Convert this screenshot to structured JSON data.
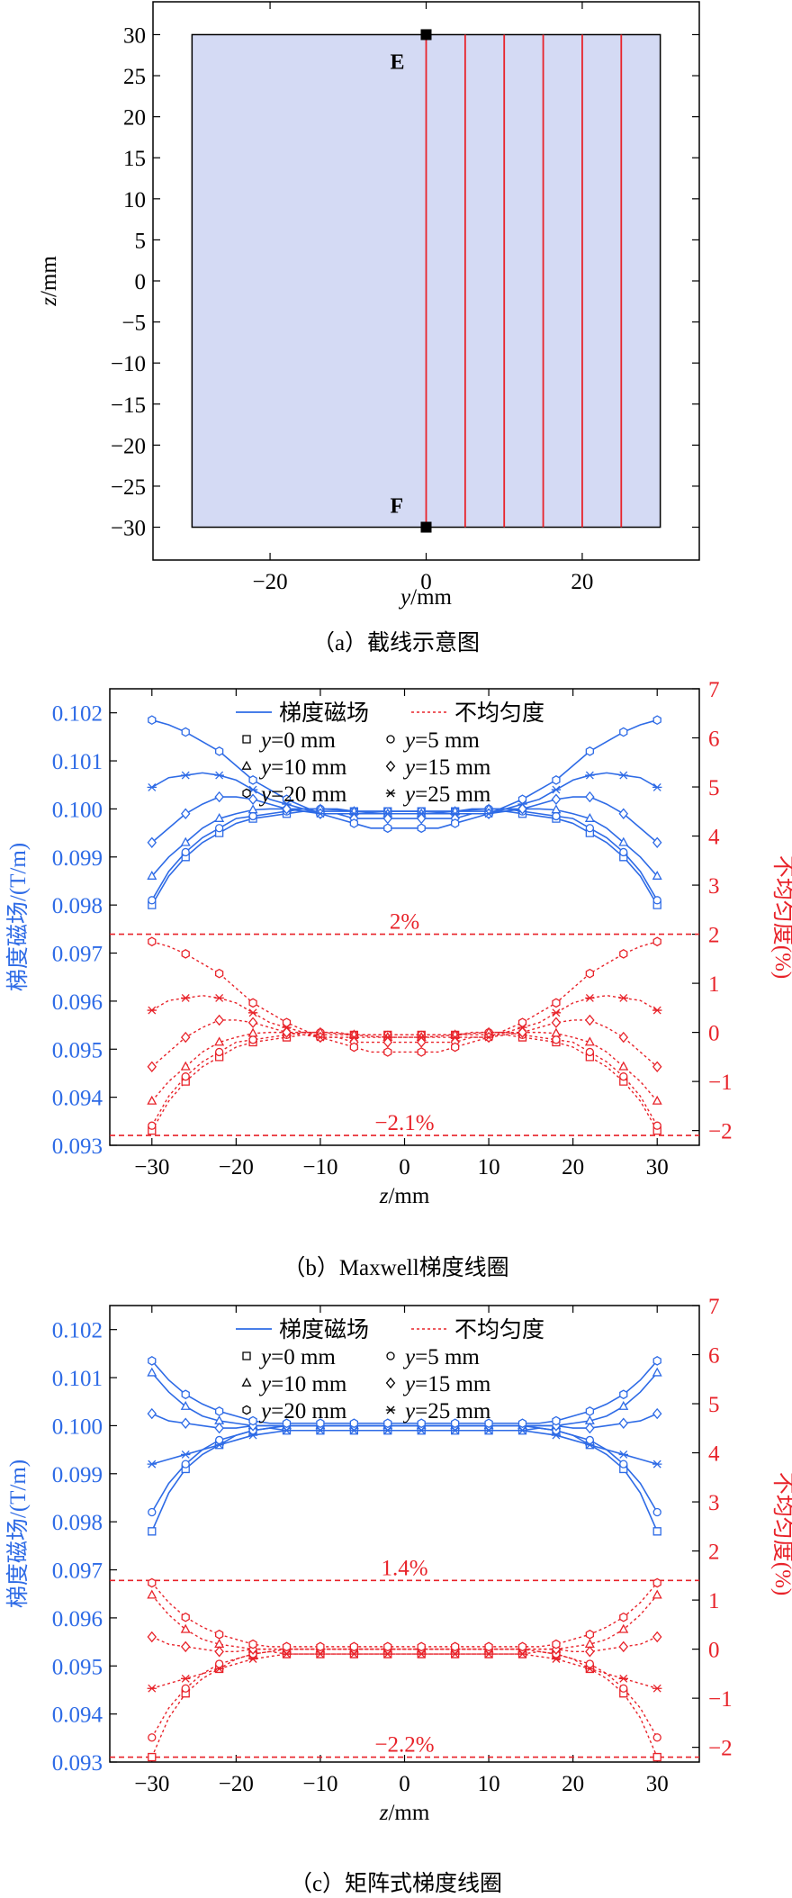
{
  "panels": {
    "a": {
      "caption": "（a）截线示意图"
    },
    "b": {
      "caption": "（b）Maxwell梯度线圈"
    },
    "c": {
      "caption": "（c）矩阵式梯度线圈"
    }
  },
  "colors": {
    "field": "#2e6be6",
    "nonuniform": "#e8232a",
    "region_fill": "#d4daf4",
    "section_line": "#e8232a"
  },
  "chart_data": [
    {
      "type": "line",
      "panel": "a",
      "xlabel_var": "y",
      "xlabel_unit": "/mm",
      "ylabel_var": "z",
      "ylabel_unit": "/mm",
      "xlim": [
        -35,
        35
      ],
      "ylim": [
        -34,
        34
      ],
      "xticks": [
        -20,
        0,
        20
      ],
      "yticks": [
        30,
        25,
        20,
        15,
        10,
        5,
        0,
        -5,
        -10,
        -15,
        -20,
        -25,
        -30
      ],
      "region": {
        "y": [
          -30,
          30
        ],
        "z": [
          -30,
          30
        ]
      },
      "section_lines_y": [
        0,
        5,
        10,
        15,
        20,
        25
      ],
      "points": [
        {
          "label": "E",
          "y": 0,
          "z": 30
        },
        {
          "label": "F",
          "y": 0,
          "z": -30
        }
      ]
    },
    {
      "type": "line",
      "panel": "b",
      "xlabel_var": "z",
      "xlabel_unit": "/mm",
      "ylabel_left": "梯度磁场/(T/m)",
      "ylabel_right": "不均匀度(%)",
      "xlim": [
        -35,
        35
      ],
      "ylim_left": [
        0.093,
        0.1025
      ],
      "ylim_right": [
        -2.3,
        7.0
      ],
      "xticks": [
        -30,
        -20,
        -10,
        0,
        10,
        20,
        30
      ],
      "yticks_left": [
        "0.093",
        "0.094",
        "0.095",
        "0.096",
        "0.097",
        "0.098",
        "0.099",
        "0.100",
        "0.101",
        "0.102"
      ],
      "yticks_right": [
        -2,
        -1,
        0,
        1,
        2,
        3,
        4,
        5,
        6,
        7
      ],
      "legend": {
        "field": "梯度磁场",
        "nonuniform": "不均匀度"
      },
      "ref_lines": [
        {
          "value": 2.0,
          "label": "2%"
        },
        {
          "value": -2.1,
          "label": "−2.1%"
        }
      ],
      "x": [
        -30,
        -28,
        -26,
        -24,
        -22,
        -20,
        -18,
        -16,
        -14,
        -12,
        -10,
        -8,
        -6,
        -4,
        -2,
        0,
        2,
        4,
        6,
        8,
        10,
        12,
        14,
        16,
        18,
        20,
        22,
        24,
        26,
        28,
        30
      ],
      "series": [
        {
          "name": "y=0 mm",
          "marker": "square",
          "field": [
            0.098,
            0.0986,
            0.099,
            0.0993,
            0.0995,
            0.0997,
            0.0998,
            0.09985,
            0.0999,
            0.09995,
            0.09995,
            0.09995,
            0.09995,
            0.09995,
            0.09995,
            0.09995,
            0.09995,
            0.09995,
            0.09995,
            0.09995,
            0.09995,
            0.09995,
            0.0999,
            0.09985,
            0.0998,
            0.0997,
            0.0995,
            0.0993,
            0.099,
            0.0986,
            0.098
          ],
          "nonuniform": [
            -2.0,
            -1.4,
            -1.0,
            -0.7,
            -0.5,
            -0.3,
            -0.2,
            -0.15,
            -0.1,
            -0.05,
            -0.05,
            -0.05,
            -0.05,
            -0.05,
            -0.05,
            -0.05,
            -0.05,
            -0.05,
            -0.05,
            -0.05,
            -0.05,
            -0.05,
            -0.1,
            -0.15,
            -0.2,
            -0.3,
            -0.5,
            -0.7,
            -1.0,
            -1.4,
            -2.0
          ]
        },
        {
          "name": "y=5 mm",
          "marker": "circle",
          "field": [
            0.0981,
            0.0987,
            0.0991,
            0.0994,
            0.0996,
            0.0998,
            0.09985,
            0.0999,
            0.09995,
            0.1,
            0.1,
            0.1,
            0.09995,
            0.09995,
            0.09995,
            0.09995,
            0.09995,
            0.09995,
            0.09995,
            0.1,
            0.1,
            0.1,
            0.09995,
            0.0999,
            0.09985,
            0.0998,
            0.0996,
            0.0994,
            0.0991,
            0.0987,
            0.0981
          ],
          "nonuniform": [
            -1.9,
            -1.3,
            -0.9,
            -0.6,
            -0.4,
            -0.2,
            -0.15,
            -0.1,
            -0.05,
            0.0,
            0.0,
            0.0,
            -0.05,
            -0.05,
            -0.05,
            -0.05,
            -0.05,
            -0.05,
            -0.05,
            0.0,
            0.0,
            0.0,
            -0.05,
            -0.1,
            -0.15,
            -0.2,
            -0.4,
            -0.6,
            -0.9,
            -1.3,
            -1.9
          ]
        },
        {
          "name": "y=10 mm",
          "marker": "triangle",
          "field": [
            0.0986,
            0.099,
            0.0993,
            0.0996,
            0.0998,
            0.0999,
            0.09998,
            0.1,
            0.1,
            0.1,
            0.1,
            0.09998,
            0.09995,
            0.09992,
            0.0999,
            0.0999,
            0.0999,
            0.09992,
            0.09995,
            0.09998,
            0.1,
            0.1,
            0.1,
            0.1,
            0.09998,
            0.0999,
            0.0998,
            0.0996,
            0.0993,
            0.099,
            0.0986
          ],
          "nonuniform": [
            -1.4,
            -1.0,
            -0.7,
            -0.4,
            -0.2,
            -0.1,
            -0.02,
            0.0,
            0.0,
            0.0,
            0.0,
            -0.02,
            -0.05,
            -0.08,
            -0.1,
            -0.1,
            -0.1,
            -0.08,
            -0.05,
            -0.02,
            0.0,
            0.0,
            0.0,
            0.0,
            -0.02,
            -0.1,
            -0.2,
            -0.4,
            -0.7,
            -1.0,
            -1.4
          ]
        },
        {
          "name": "y=15 mm",
          "marker": "diamond",
          "field": [
            0.0993,
            0.0996,
            0.0999,
            0.1001,
            0.10025,
            0.10025,
            0.1002,
            0.1001,
            0.1,
            0.09995,
            0.0999,
            0.0999,
            0.0998,
            0.0998,
            0.0998,
            0.0998,
            0.0998,
            0.0998,
            0.0998,
            0.0999,
            0.0999,
            0.09995,
            0.1,
            0.1001,
            0.1002,
            0.10025,
            0.10025,
            0.1001,
            0.0999,
            0.0996,
            0.0993
          ],
          "nonuniform": [
            -0.7,
            -0.4,
            -0.1,
            0.1,
            0.25,
            0.25,
            0.2,
            0.1,
            0.0,
            -0.05,
            -0.1,
            -0.1,
            -0.2,
            -0.2,
            -0.2,
            -0.2,
            -0.2,
            -0.2,
            -0.2,
            -0.1,
            -0.1,
            -0.05,
            0.0,
            0.1,
            0.2,
            0.25,
            0.25,
            0.1,
            -0.1,
            -0.4,
            -0.7
          ]
        },
        {
          "name": "y=20 mm",
          "marker": "hexagon",
          "field": [
            0.10185,
            0.10175,
            0.1016,
            0.1014,
            0.1012,
            0.1009,
            0.1006,
            0.1004,
            0.1002,
            0.10005,
            0.0999,
            0.0998,
            0.0997,
            0.0996,
            0.0996,
            0.0996,
            0.0996,
            0.0996,
            0.0997,
            0.0998,
            0.0999,
            0.10005,
            0.1002,
            0.1004,
            0.1006,
            0.1009,
            0.1012,
            0.1014,
            0.1016,
            0.10175,
            0.10185
          ],
          "nonuniform": [
            1.85,
            1.75,
            1.6,
            1.4,
            1.2,
            0.9,
            0.6,
            0.4,
            0.2,
            0.05,
            -0.1,
            -0.2,
            -0.3,
            -0.4,
            -0.4,
            -0.4,
            -0.4,
            -0.4,
            -0.3,
            -0.2,
            -0.1,
            0.05,
            0.2,
            0.4,
            0.6,
            0.9,
            1.2,
            1.4,
            1.6,
            1.75,
            1.85
          ]
        },
        {
          "name": "y=25 mm",
          "marker": "star",
          "field": [
            0.10045,
            0.10065,
            0.1007,
            0.10075,
            0.1007,
            0.1006,
            0.1004,
            0.1002,
            0.1001,
            0.1,
            0.0999,
            0.0999,
            0.0999,
            0.0999,
            0.0999,
            0.0999,
            0.0999,
            0.0999,
            0.0999,
            0.0999,
            0.0999,
            0.1,
            0.1001,
            0.1002,
            0.1004,
            0.1006,
            0.1007,
            0.10075,
            0.1007,
            0.10065,
            0.10045
          ],
          "nonuniform": [
            0.45,
            0.65,
            0.7,
            0.75,
            0.7,
            0.6,
            0.4,
            0.2,
            0.1,
            0.0,
            -0.1,
            -0.1,
            -0.1,
            -0.1,
            -0.1,
            -0.1,
            -0.1,
            -0.1,
            -0.1,
            -0.1,
            -0.1,
            0.0,
            0.1,
            0.2,
            0.4,
            0.6,
            0.7,
            0.75,
            0.7,
            0.65,
            0.45
          ]
        }
      ]
    },
    {
      "type": "line",
      "panel": "c",
      "xlabel_var": "z",
      "xlabel_unit": "/mm",
      "ylabel_left": "梯度磁场/(T/m)",
      "ylabel_right": "不均匀度(%)",
      "xlim": [
        -35,
        35
      ],
      "ylim_left": [
        0.093,
        0.1025
      ],
      "ylim_right": [
        -2.3,
        7.0
      ],
      "xticks": [
        -30,
        -20,
        -10,
        0,
        10,
        20,
        30
      ],
      "yticks_left": [
        "0.093",
        "0.094",
        "0.095",
        "0.096",
        "0.097",
        "0.098",
        "0.099",
        "0.100",
        "0.101",
        "0.102"
      ],
      "yticks_right": [
        -2,
        -1,
        0,
        1,
        2,
        3,
        4,
        5,
        6,
        7
      ],
      "legend": {
        "field": "梯度磁场",
        "nonuniform": "不均匀度"
      },
      "ref_lines": [
        {
          "value": 1.4,
          "label": "1.4%"
        },
        {
          "value": -2.2,
          "label": "−2.2%"
        }
      ],
      "x": [
        -30,
        -28,
        -26,
        -24,
        -22,
        -20,
        -18,
        -16,
        -14,
        -12,
        -10,
        -8,
        -6,
        -4,
        -2,
        0,
        2,
        4,
        6,
        8,
        10,
        12,
        14,
        16,
        18,
        20,
        22,
        24,
        26,
        28,
        30
      ],
      "series": [
        {
          "name": "y=0 mm",
          "marker": "square",
          "field": [
            0.0978,
            0.0986,
            0.0991,
            0.0994,
            0.0996,
            0.0998,
            0.0999,
            0.09995,
            0.0999,
            0.0999,
            0.0999,
            0.0999,
            0.0999,
            0.0999,
            0.0999,
            0.0999,
            0.0999,
            0.0999,
            0.0999,
            0.0999,
            0.0999,
            0.0999,
            0.0999,
            0.09995,
            0.0999,
            0.0998,
            0.0996,
            0.0994,
            0.0991,
            0.0986,
            0.0978
          ],
          "nonuniform": [
            -2.2,
            -1.4,
            -0.9,
            -0.6,
            -0.4,
            -0.2,
            -0.1,
            -0.05,
            -0.1,
            -0.1,
            -0.1,
            -0.1,
            -0.1,
            -0.1,
            -0.1,
            -0.1,
            -0.1,
            -0.1,
            -0.1,
            -0.1,
            -0.1,
            -0.1,
            -0.1,
            -0.05,
            -0.1,
            -0.2,
            -0.4,
            -0.6,
            -0.9,
            -1.4,
            -2.2
          ]
        },
        {
          "name": "y=5 mm",
          "marker": "circle",
          "field": [
            0.0982,
            0.0988,
            0.0992,
            0.0995,
            0.0997,
            0.0998,
            0.0999,
            0.09995,
            0.1,
            0.1,
            0.1,
            0.1,
            0.1,
            0.1,
            0.1,
            0.1,
            0.1,
            0.1,
            0.1,
            0.1,
            0.1,
            0.1,
            0.1,
            0.09995,
            0.0999,
            0.0998,
            0.0997,
            0.0995,
            0.0992,
            0.0988,
            0.0982
          ],
          "nonuniform": [
            -1.8,
            -1.2,
            -0.8,
            -0.5,
            -0.3,
            -0.2,
            -0.1,
            -0.05,
            0.0,
            0.0,
            0.0,
            0.0,
            0.0,
            0.0,
            0.0,
            0.0,
            0.0,
            0.0,
            0.0,
            0.0,
            0.0,
            0.0,
            0.0,
            -0.05,
            -0.1,
            -0.2,
            -0.3,
            -0.5,
            -0.8,
            -1.2,
            -1.8
          ]
        },
        {
          "name": "y=10 mm",
          "marker": "triangle",
          "field": [
            0.1011,
            0.1007,
            0.1004,
            0.1002,
            0.1001,
            0.10005,
            0.1,
            0.1,
            0.1,
            0.1,
            0.1,
            0.1,
            0.1,
            0.1,
            0.1,
            0.1,
            0.1,
            0.1,
            0.1,
            0.1,
            0.1,
            0.1,
            0.1,
            0.1,
            0.1,
            0.10005,
            0.1001,
            0.1002,
            0.1004,
            0.1007,
            0.1011
          ],
          "nonuniform": [
            1.1,
            0.7,
            0.4,
            0.2,
            0.1,
            0.05,
            0.0,
            0.0,
            0.0,
            0.0,
            0.0,
            0.0,
            0.0,
            0.0,
            0.0,
            0.0,
            0.0,
            0.0,
            0.0,
            0.0,
            0.0,
            0.0,
            0.0,
            0.0,
            0.0,
            0.05,
            0.1,
            0.2,
            0.4,
            0.7,
            1.1
          ]
        },
        {
          "name": "y=15 mm",
          "marker": "diamond",
          "field": [
            0.10025,
            0.1001,
            0.10005,
            0.1,
            0.09995,
            0.09995,
            0.1,
            0.1,
            0.1,
            0.1,
            0.1,
            0.1,
            0.1,
            0.1,
            0.1,
            0.1,
            0.1,
            0.1,
            0.1,
            0.1,
            0.1,
            0.1,
            0.1,
            0.1,
            0.1,
            0.09995,
            0.09995,
            0.1,
            0.10005,
            0.1001,
            0.10025
          ],
          "nonuniform": [
            0.25,
            0.1,
            0.05,
            0.0,
            -0.05,
            -0.05,
            0.0,
            0.0,
            0.0,
            0.0,
            0.0,
            0.0,
            0.0,
            0.0,
            0.0,
            0.0,
            0.0,
            0.0,
            0.0,
            0.0,
            0.0,
            0.0,
            0.0,
            0.0,
            0.0,
            -0.05,
            -0.05,
            0.0,
            0.05,
            0.1,
            0.25
          ]
        },
        {
          "name": "y=20 mm",
          "marker": "hexagon",
          "field": [
            0.10135,
            0.10095,
            0.10065,
            0.10045,
            0.1003,
            0.1002,
            0.1001,
            0.10005,
            0.10005,
            0.10005,
            0.10005,
            0.10005,
            0.10005,
            0.10005,
            0.10005,
            0.10005,
            0.10005,
            0.10005,
            0.10005,
            0.10005,
            0.10005,
            0.10005,
            0.10005,
            0.10005,
            0.1001,
            0.1002,
            0.1003,
            0.10045,
            0.10065,
            0.10095,
            0.10135
          ],
          "nonuniform": [
            1.35,
            0.95,
            0.65,
            0.45,
            0.3,
            0.2,
            0.1,
            0.05,
            0.05,
            0.05,
            0.05,
            0.05,
            0.05,
            0.05,
            0.05,
            0.05,
            0.05,
            0.05,
            0.05,
            0.05,
            0.05,
            0.05,
            0.05,
            0.05,
            0.1,
            0.2,
            0.3,
            0.45,
            0.65,
            0.95,
            1.35
          ]
        },
        {
          "name": "y=25 mm",
          "marker": "star",
          "field": [
            0.0992,
            0.0993,
            0.0994,
            0.0995,
            0.0996,
            0.0997,
            0.0998,
            0.09985,
            0.0999,
            0.0999,
            0.0999,
            0.0999,
            0.0999,
            0.0999,
            0.0999,
            0.0999,
            0.0999,
            0.0999,
            0.0999,
            0.0999,
            0.0999,
            0.0999,
            0.0999,
            0.09985,
            0.0998,
            0.0997,
            0.0996,
            0.0995,
            0.0994,
            0.0993,
            0.0992
          ],
          "nonuniform": [
            -0.8,
            -0.7,
            -0.6,
            -0.5,
            -0.4,
            -0.3,
            -0.2,
            -0.15,
            -0.1,
            -0.1,
            -0.1,
            -0.1,
            -0.1,
            -0.1,
            -0.1,
            -0.1,
            -0.1,
            -0.1,
            -0.1,
            -0.1,
            -0.1,
            -0.1,
            -0.1,
            -0.15,
            -0.2,
            -0.3,
            -0.4,
            -0.5,
            -0.6,
            -0.7,
            -0.8
          ]
        }
      ]
    }
  ]
}
